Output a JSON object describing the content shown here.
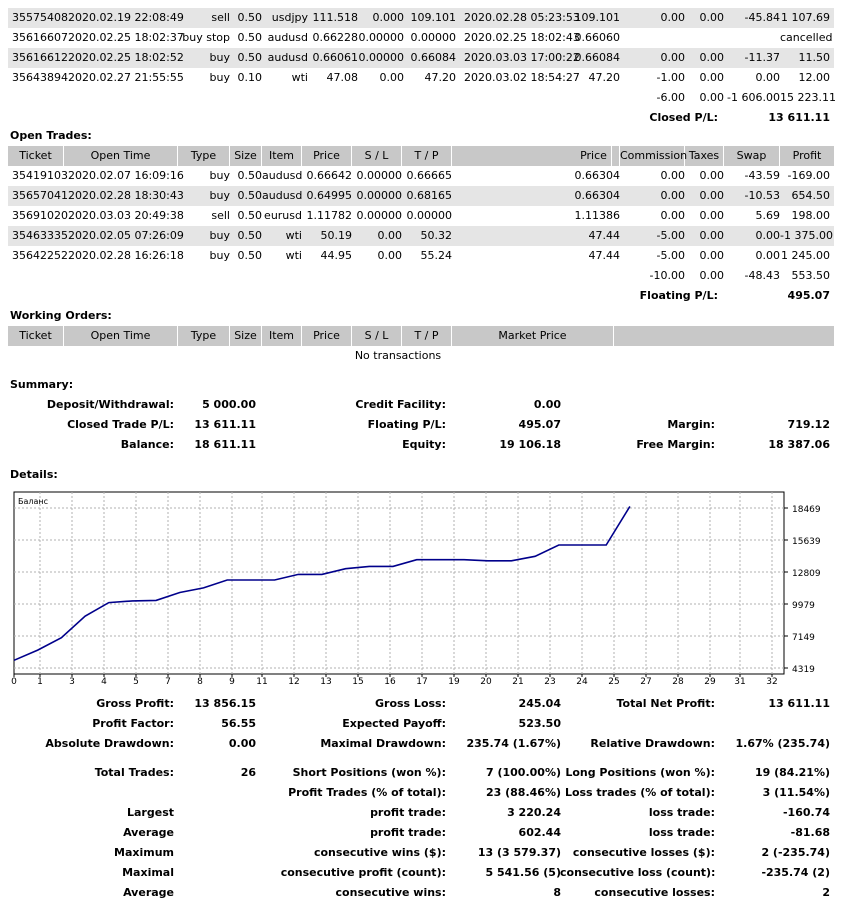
{
  "closed_trades": [
    {
      "ticket": "35575408",
      "open_time": "2020.02.19 22:08:49",
      "type": "sell",
      "size": "0.50",
      "item": "usdjpy",
      "price": "111.518",
      "sl": "0.000",
      "tp": "109.101",
      "close_time": "2020.02.28 05:23:53",
      "close_price": "109.101",
      "commission": "0.00",
      "taxes": "0.00",
      "swap": "-45.84",
      "profit": "1 107.69"
    },
    {
      "ticket": "35616607",
      "open_time": "2020.02.25 18:02:37",
      "type": "buy stop",
      "size": "0.50",
      "item": "audusd",
      "price": "0.66228",
      "sl": "0.00000",
      "tp": "0.00000",
      "close_time": "2020.02.25 18:02:43",
      "close_price": "0.66060",
      "commission": "",
      "taxes": "",
      "swap": "",
      "profit": "cancelled"
    },
    {
      "ticket": "35616612",
      "open_time": "2020.02.25 18:02:52",
      "type": "buy",
      "size": "0.50",
      "item": "audusd",
      "price": "0.66061",
      "sl": "0.00000",
      "tp": "0.66084",
      "close_time": "2020.03.03 17:00:22",
      "close_price": "0.66084",
      "commission": "0.00",
      "taxes": "0.00",
      "swap": "-11.37",
      "profit": "11.50"
    },
    {
      "ticket": "35643894",
      "open_time": "2020.02.27 21:55:55",
      "type": "buy",
      "size": "0.10",
      "item": "wti",
      "price": "47.08",
      "sl": "0.00",
      "tp": "47.20",
      "close_time": "2020.03.02 18:54:27",
      "close_price": "47.20",
      "commission": "-1.00",
      "taxes": "0.00",
      "swap": "0.00",
      "profit": "12.00"
    }
  ],
  "closed_totals": {
    "commission": "-6.00",
    "taxes": "0.00",
    "swap": "-1 606.00",
    "profit": "15 223.11"
  },
  "closed_pl": {
    "label": "Closed P/L:",
    "value": "13 611.11"
  },
  "open_trades_title": "Open Trades:",
  "open_headers": {
    "ticket": "Ticket",
    "open_time": "Open Time",
    "type": "Type",
    "size": "Size",
    "item": "Item",
    "price": "Price",
    "sl": "S / L",
    "tp": "T / P",
    "price2": "Price",
    "commission": "Commission",
    "taxes": "Taxes",
    "swap": "Swap",
    "profit": "Profit"
  },
  "open_trades": [
    {
      "ticket": "35419103",
      "open_time": "2020.02.07 16:09:16",
      "type": "buy",
      "size": "0.50",
      "item": "audusd",
      "price": "0.66642",
      "sl": "0.00000",
      "tp": "0.66665",
      "price2": "0.66304",
      "commission": "0.00",
      "taxes": "0.00",
      "swap": "-43.59",
      "profit": "-169.00"
    },
    {
      "ticket": "35657041",
      "open_time": "2020.02.28 18:30:43",
      "type": "buy",
      "size": "0.50",
      "item": "audusd",
      "price": "0.64995",
      "sl": "0.00000",
      "tp": "0.68165",
      "price2": "0.66304",
      "commission": "0.00",
      "taxes": "0.00",
      "swap": "-10.53",
      "profit": "654.50"
    },
    {
      "ticket": "35691020",
      "open_time": "2020.03.03 20:49:38",
      "type": "sell",
      "size": "0.50",
      "item": "eurusd",
      "price": "1.11782",
      "sl": "0.00000",
      "tp": "0.00000",
      "price2": "1.11386",
      "commission": "0.00",
      "taxes": "0.00",
      "swap": "5.69",
      "profit": "198.00"
    },
    {
      "ticket": "35463335",
      "open_time": "2020.02.05 07:26:09",
      "type": "buy",
      "size": "0.50",
      "item": "wti",
      "price": "50.19",
      "sl": "0.00",
      "tp": "50.32",
      "price2": "47.44",
      "commission": "-5.00",
      "taxes": "0.00",
      "swap": "0.00",
      "profit": "-1 375.00"
    },
    {
      "ticket": "35642252",
      "open_time": "2020.02.28 16:26:18",
      "type": "buy",
      "size": "0.50",
      "item": "wti",
      "price": "44.95",
      "sl": "0.00",
      "tp": "55.24",
      "price2": "47.44",
      "commission": "-5.00",
      "taxes": "0.00",
      "swap": "0.00",
      "profit": "1 245.00"
    }
  ],
  "open_totals": {
    "commission": "-10.00",
    "taxes": "0.00",
    "swap": "-48.43",
    "profit": "553.50"
  },
  "floating_pl": {
    "label": "Floating P/L:",
    "value": "495.07"
  },
  "working_title": "Working Orders:",
  "working_headers": {
    "ticket": "Ticket",
    "open_time": "Open Time",
    "type": "Type",
    "size": "Size",
    "item": "Item",
    "price": "Price",
    "sl": "S / L",
    "tp": "T / P",
    "market_price": "Market Price"
  },
  "working_empty": "No transactions",
  "summary_title": "Summary:",
  "summary": {
    "deposit_label": "Deposit/Withdrawal:",
    "deposit": "5 000.00",
    "credit_label": "Credit Facility:",
    "credit": "0.00",
    "closed_label": "Closed Trade P/L:",
    "closed": "13 611.11",
    "floating_label": "Floating P/L:",
    "floating": "495.07",
    "margin_label": "Margin:",
    "margin": "719.12",
    "balance_label": "Balance:",
    "balance": "18 611.11",
    "equity_label": "Equity:",
    "equity": "19 106.18",
    "free_margin_label": "Free Margin:",
    "free_margin": "18 387.06"
  },
  "details_title": "Details:",
  "chart_data": {
    "type": "line",
    "title": "Баланс",
    "series": [
      {
        "name": "Баланс",
        "color": "#00008b",
        "x": [
          0,
          1,
          2,
          3,
          4,
          5,
          6,
          7,
          8,
          9,
          10,
          11,
          12,
          13,
          14,
          15,
          16,
          17,
          18,
          19,
          20,
          21,
          22,
          23,
          24,
          25,
          26
        ],
        "values": [
          5000,
          5900,
          7000,
          8900,
          10100,
          10250,
          10300,
          11000,
          11400,
          12100,
          12100,
          12100,
          12600,
          12600,
          13100,
          13300,
          13300,
          13900,
          13900,
          13900,
          13800,
          13800,
          14200,
          15200,
          15200,
          15200,
          18611
        ]
      }
    ],
    "x_ticks": [
      "0",
      "1",
      "3",
      "4",
      "5",
      "7",
      "8",
      "9",
      "11",
      "12",
      "13",
      "15",
      "16",
      "17",
      "19",
      "20",
      "21",
      "23",
      "24",
      "25",
      "27",
      "28",
      "29",
      "31",
      "32"
    ],
    "y_ticks": [
      "4319",
      "7149",
      "9979",
      "12809",
      "15639",
      "18469"
    ],
    "ylim": [
      4319,
      18469
    ],
    "grid": true
  },
  "stats": {
    "gross_profit_label": "Gross Profit:",
    "gross_profit": "13 856.15",
    "gross_loss_label": "Gross Loss:",
    "gross_loss": "245.04",
    "total_net_label": "Total Net Profit:",
    "total_net": "13 611.11",
    "profit_factor_label": "Profit Factor:",
    "profit_factor": "56.55",
    "expected_payoff_label": "Expected Payoff:",
    "expected_payoff": "523.50",
    "abs_dd_label": "Absolute Drawdown:",
    "abs_dd": "0.00",
    "max_dd_label": "Maximal Drawdown:",
    "max_dd": "235.74 (1.67%)",
    "rel_dd_label": "Relative Drawdown:",
    "rel_dd": "1.67% (235.74)",
    "total_trades_label": "Total Trades:",
    "total_trades": "26",
    "short_label": "Short Positions (won %):",
    "short": "7 (100.00%)",
    "long_label": "Long Positions (won %):",
    "long": "19 (84.21%)",
    "profit_trades_label": "Profit Trades (% of total):",
    "profit_trades": "23 (88.46%)",
    "loss_trades_label": "Loss trades (% of total):",
    "loss_trades": "3 (11.54%)",
    "largest_label": "Largest",
    "largest_profit_label": "profit trade:",
    "largest_profit": "3 220.24",
    "largest_loss_label": "loss trade:",
    "largest_loss": "-160.74",
    "average_label": "Average",
    "average_profit_label": "profit trade:",
    "average_profit": "602.44",
    "average_loss_label": "loss trade:",
    "average_loss": "-81.68",
    "maximum_label": "Maximum",
    "max_cons_wins_label": "consecutive wins ($):",
    "max_cons_wins": "13 (3 579.37)",
    "max_cons_losses_label": "consecutive losses ($):",
    "max_cons_losses": "2 (-235.74)",
    "maximal_label": "Maximal",
    "maximal_cons_profit_label": "consecutive profit (count):",
    "maximal_cons_profit": "5 541.56 (5)",
    "maximal_cons_loss_label": "consecutive loss (count):",
    "maximal_cons_loss": "-235.74 (2)",
    "average2_label": "Average",
    "avg_cons_wins_label": "consecutive wins:",
    "avg_cons_wins": "8",
    "avg_cons_losses_label": "consecutive losses:",
    "avg_cons_losses": "2"
  }
}
